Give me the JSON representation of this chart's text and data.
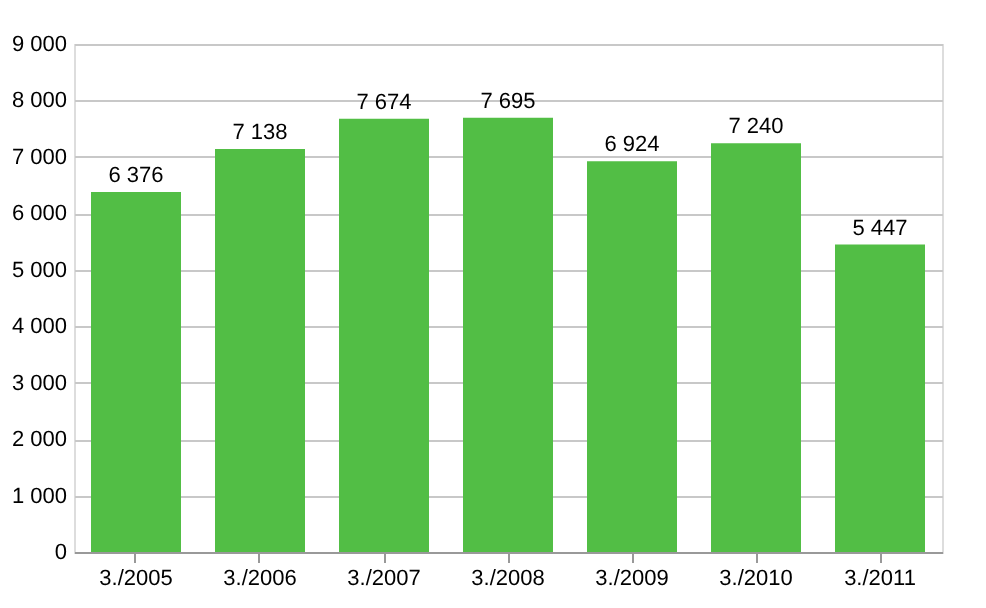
{
  "chart_data": {
    "type": "bar",
    "categories": [
      "3./2005",
      "3./2006",
      "3./2007",
      "3./2008",
      "3./2009",
      "3./2010",
      "3./2011"
    ],
    "values": [
      6376,
      7138,
      7674,
      7695,
      6924,
      7240,
      5447
    ],
    "value_labels": [
      "6 376",
      "7 138",
      "7 674",
      "7 695",
      "6 924",
      "7 240",
      "5 447"
    ],
    "color": "#52be45",
    "ylim": [
      0,
      9000
    ],
    "yticks": [
      0,
      {
        "value": 1000,
        "label": "1 000"
      },
      {
        "value": 2000,
        "label": "2 000"
      },
      {
        "value": 3000,
        "label": "3 000"
      },
      {
        "value": 4000,
        "label": "4 000"
      },
      {
        "value": 5000,
        "label": "5 000"
      },
      {
        "value": 6000,
        "label": "6 000"
      },
      {
        "value": 7000,
        "label": "7 000"
      },
      {
        "value": 8000,
        "label": "8 000"
      },
      {
        "value": 9000,
        "label": "9 000"
      }
    ],
    "grid": "y"
  }
}
